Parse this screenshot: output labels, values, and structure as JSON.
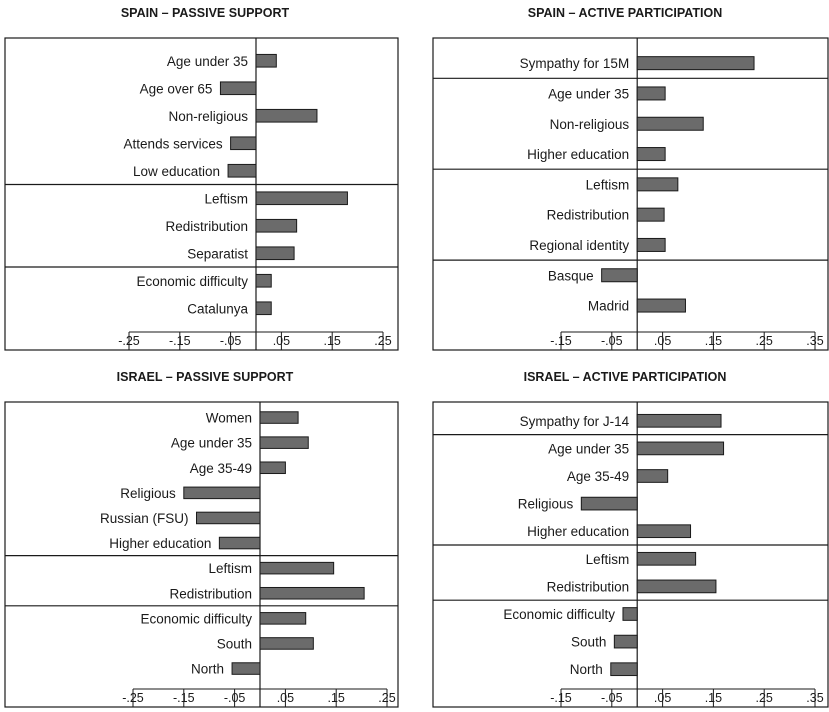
{
  "chart_data": [
    {
      "type": "bar",
      "orientation": "horizontal",
      "title": "SPAIN – PASSIVE SUPPORT",
      "categories": [
        "Age under 35",
        "Age over 65",
        "Non-religious",
        "Attends services",
        "Low education",
        "Leftism",
        "Redistribution",
        "Separatist",
        "Economic difficulty",
        "Catalunya"
      ],
      "values": [
        0.04,
        -0.07,
        0.12,
        -0.05,
        -0.055,
        0.18,
        0.08,
        0.075,
        0.03,
        0.03
      ],
      "groups": [
        5,
        3,
        2
      ],
      "xlim": [
        -0.25,
        0.25
      ],
      "xticks": [
        -0.25,
        -0.15,
        -0.05,
        0.05,
        0.15,
        0.25
      ],
      "xtick_labels": [
        "-.25",
        "-.15",
        "-.05",
        ".05",
        ".15",
        ".25"
      ]
    },
    {
      "type": "bar",
      "orientation": "horizontal",
      "title": "SPAIN – ACTIVE PARTICIPATION",
      "categories": [
        "Sympathy for 15M",
        "Age under 35",
        "Non-religious",
        "Higher education",
        "Leftism",
        "Redistribution",
        "Regional identity",
        "Basque",
        "Madrid"
      ],
      "values": [
        0.23,
        0.055,
        0.13,
        0.055,
        0.08,
        0.053,
        0.055,
        -0.07,
        0.095
      ],
      "groups": [
        1,
        3,
        3,
        2
      ],
      "xlim": [
        -0.15,
        0.35
      ],
      "xticks": [
        -0.15,
        -0.05,
        0.05,
        0.15,
        0.25,
        0.35
      ],
      "xtick_labels": [
        "-.15",
        "-.05",
        ".05",
        ".15",
        ".25",
        ".35"
      ]
    },
    {
      "type": "bar",
      "orientation": "horizontal",
      "title": "ISRAEL – PASSIVE SUPPORT",
      "categories": [
        "Women",
        "Age under 35",
        "Age 35-49",
        "Religious",
        "Russian (FSU)",
        "Higher education",
        "Leftism",
        "Redistribution",
        "Economic difficulty",
        "South",
        "North"
      ],
      "values": [
        0.075,
        0.095,
        0.05,
        -0.15,
        -0.125,
        -0.08,
        0.145,
        0.205,
        0.09,
        0.105,
        -0.055
      ],
      "groups": [
        6,
        2,
        3
      ],
      "xlim": [
        -0.25,
        0.25
      ],
      "xticks": [
        -0.25,
        -0.15,
        -0.05,
        0.05,
        0.15,
        0.25
      ],
      "xtick_labels": [
        "-.25",
        "-.15",
        "-.05",
        ".05",
        ".15",
        ".25"
      ]
    },
    {
      "type": "bar",
      "orientation": "horizontal",
      "title": "ISRAEL – ACTIVE PARTICIPATION",
      "categories": [
        "Sympathy for J-14",
        "Age under 35",
        "Age 35-49",
        "Religious",
        "Higher education",
        "Leftism",
        "Redistribution",
        "Economic difficulty",
        "South",
        "North"
      ],
      "values": [
        0.165,
        0.17,
        0.06,
        -0.11,
        0.105,
        0.115,
        0.155,
        -0.028,
        -0.045,
        -0.052
      ],
      "groups": [
        1,
        4,
        2,
        3
      ],
      "xlim": [
        -0.15,
        0.35
      ],
      "xticks": [
        -0.15,
        -0.05,
        0.05,
        0.15,
        0.25,
        0.35
      ],
      "xtick_labels": [
        "-.15",
        "-.05",
        ".05",
        ".15",
        ".25",
        ".35"
      ]
    }
  ]
}
